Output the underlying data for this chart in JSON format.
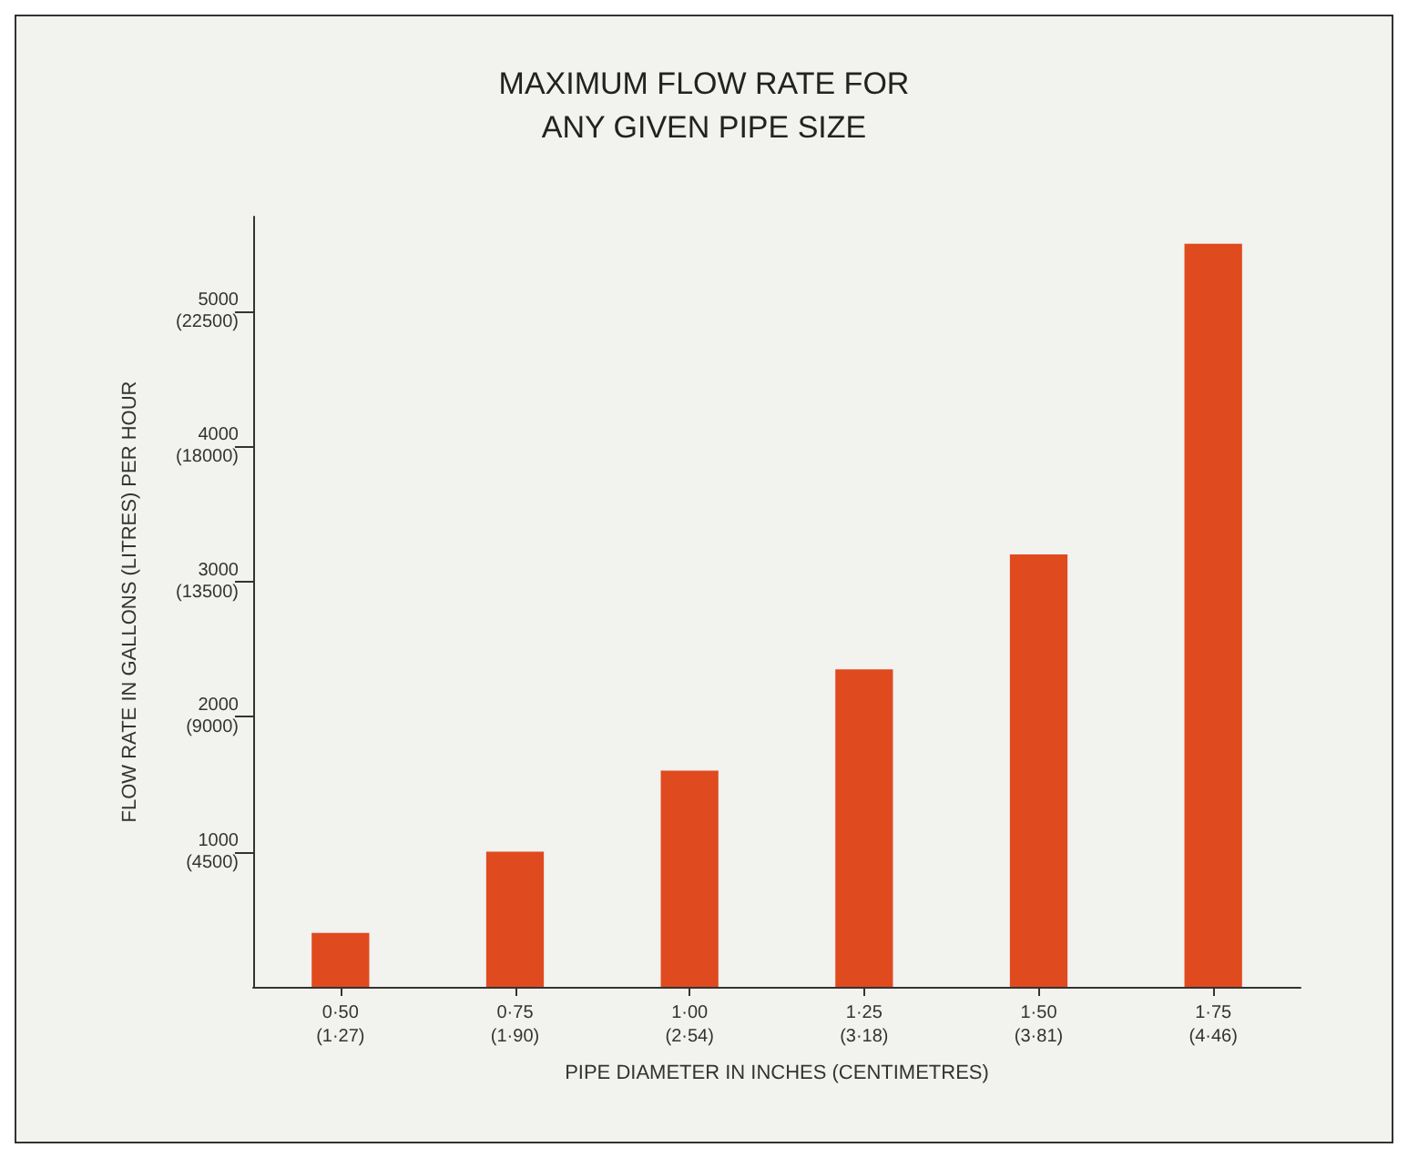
{
  "chart_data": {
    "type": "bar",
    "title": "MAXIMUM FLOW RATE FOR\nANY GIVEN PIPE SIZE",
    "xlabel": "PIPE DIAMETER IN INCHES (CENTIMETRES)",
    "y2label": "FLOW RATE IN GALLONS (LITRES) PER HOUR",
    "categories": [
      "0·50\n(1·27)",
      "0·75\n(1·90)",
      "1·00\n(2·54)",
      "1·25\n(3·18)",
      "1·50\n(3·81)",
      "1·75\n(4·46)"
    ],
    "values": [
      400,
      1000,
      1600,
      2350,
      3200,
      5500
    ],
    "color": "#e04a1f",
    "ylim": [
      0,
      5700
    ],
    "yticks": [
      1000,
      2000,
      3000,
      4000,
      5000
    ],
    "y2lim": [
      0,
      25650
    ],
    "y2ticks": [
      {
        "value": 4500,
        "label": "(4500)"
      },
      {
        "value": 9000,
        "label": "(9000)"
      },
      {
        "value": 13500,
        "label": "(13500)"
      },
      {
        "value": 18000,
        "label": "(18000)"
      },
      {
        "value": 22500,
        "label": "(22500)"
      }
    ],
    "grid": false
  }
}
